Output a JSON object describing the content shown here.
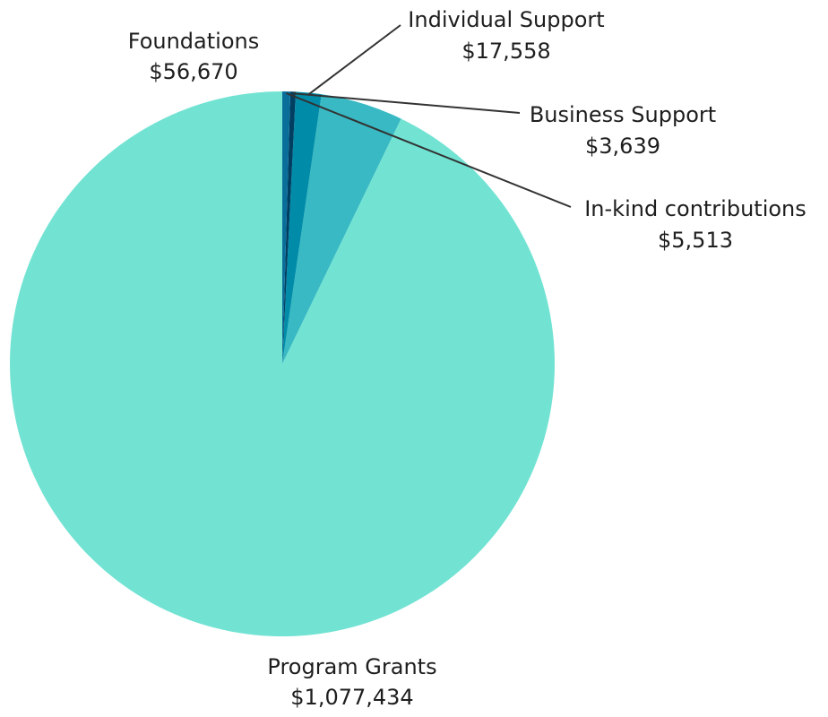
{
  "chart_data": {
    "type": "pie",
    "title": "",
    "start": "12 o'clock",
    "direction": "counterclockwise",
    "categories": [
      "Program Grants",
      "Foundations",
      "Individual Support",
      "Business Support",
      "In-kind contributions"
    ],
    "values": [
      1077434,
      56670,
      17558,
      3639,
      5513
    ],
    "value_labels": [
      "$1,077,434",
      "$56,670",
      "$17,558",
      "$3,639",
      "$5,513"
    ],
    "colors": [
      "#72E3D3",
      "#38B9C3",
      "#008CA9",
      "#003F62",
      "#0A6E9A"
    ],
    "legend": "none (direct labels with leader lines)"
  }
}
